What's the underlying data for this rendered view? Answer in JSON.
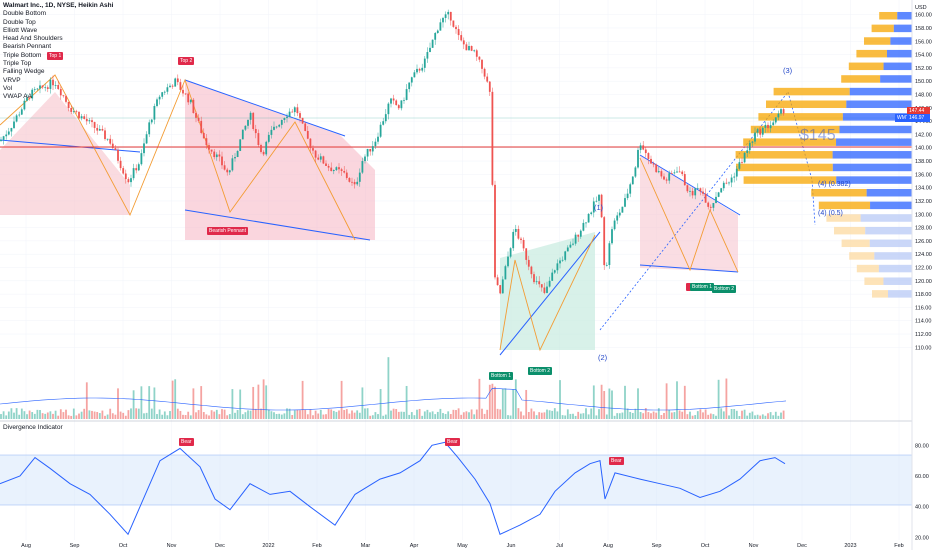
{
  "legend": {
    "title": "Walmart Inc., 1D, NYSE, Heikin Ashi",
    "items": [
      "Double Bottom",
      "Double Top",
      "Elliott Wave",
      "Head And Shoulders",
      "Bearish Pennant",
      "Triple Bottom",
      "Triple Top",
      "Falling Wedge",
      "VRVP",
      "Vol",
      "VWAP AA"
    ]
  },
  "oscillator_title": "Divergence Indicator",
  "patterns": {
    "top1": "Top 1",
    "top2": "Top 2",
    "bearish_pennant": "Bearish Pennant",
    "bottom1_a": "Bottom 1",
    "bottom2_a": "Bottom 2",
    "bottom1_b": "Bottom 1",
    "bottom2_b": "Bottom 2",
    "bear1": "Bear",
    "bear2": "Bear",
    "bear3": "Bear"
  },
  "waves": {
    "w1": "(1)",
    "w2": "(2)",
    "w3": "(3)",
    "w4a": "(4) (0.382)",
    "w4b": "(4) (0.5)",
    "target": "$145"
  },
  "price_tags": {
    "last": "147.44",
    "wmt": "WMT",
    "wmt_value": "146.97"
  },
  "colors": {
    "up": "#26a69a",
    "down": "#ef5350",
    "blue": "#2962ff",
    "orange": "#f7a600",
    "pattern_red": "#f5a6b4",
    "pattern_green": "#c8ebdf",
    "osc": "#2962ff"
  },
  "chart_data": {
    "type": "candlestick",
    "price_axis": {
      "label": "USD",
      "ticks": [
        160,
        158,
        156,
        154,
        152,
        150,
        148,
        146,
        144,
        142,
        140,
        138,
        136,
        134,
        132,
        130,
        128,
        126,
        124,
        122,
        120,
        118,
        116,
        114,
        112,
        110
      ],
      "ylim": [
        109,
        161
      ]
    },
    "oscillator_axis": {
      "ticks": [
        80,
        60,
        40,
        20
      ],
      "ylim": [
        15,
        90
      ],
      "band": [
        30,
        70
      ]
    },
    "time_axis": [
      "Aug",
      "Sep",
      "Oct",
      "Nov",
      "Dec",
      "2022",
      "Feb",
      "Mar",
      "Apr",
      "May",
      "Jun",
      "Jul",
      "Aug",
      "Sep",
      "Oct",
      "Nov",
      "Dec",
      "2023",
      "Feb"
    ],
    "key_levels": {
      "horizontal_red": 143.5,
      "last_close": 147.44,
      "wmt": 146.97
    },
    "price_path": [
      [
        0,
        141
      ],
      [
        10,
        143
      ],
      [
        30,
        148
      ],
      [
        55,
        150
      ],
      [
        70,
        146
      ],
      [
        95,
        143
      ],
      [
        110,
        141
      ],
      [
        128,
        135
      ],
      [
        140,
        138
      ],
      [
        150,
        144
      ],
      [
        160,
        148
      ],
      [
        175,
        150
      ],
      [
        190,
        147
      ],
      [
        205,
        141
      ],
      [
        220,
        138
      ],
      [
        228,
        136
      ],
      [
        240,
        141
      ],
      [
        250,
        145
      ],
      [
        262,
        139
      ],
      [
        270,
        142
      ],
      [
        285,
        145
      ],
      [
        296,
        146
      ],
      [
        305,
        142
      ],
      [
        315,
        139
      ],
      [
        330,
        137
      ],
      [
        345,
        136
      ],
      [
        355,
        134
      ],
      [
        362,
        138
      ],
      [
        375,
        141
      ],
      [
        390,
        147
      ],
      [
        400,
        146
      ],
      [
        410,
        150
      ],
      [
        425,
        153
      ],
      [
        440,
        159
      ],
      [
        450,
        160
      ],
      [
        460,
        156
      ],
      [
        475,
        154
      ],
      [
        485,
        151
      ],
      [
        490,
        148
      ],
      [
        495,
        120
      ],
      [
        500,
        118
      ],
      [
        510,
        125
      ],
      [
        515,
        128
      ],
      [
        525,
        124
      ],
      [
        535,
        120
      ],
      [
        545,
        118
      ],
      [
        555,
        122
      ],
      [
        570,
        125
      ],
      [
        585,
        129
      ],
      [
        600,
        133
      ],
      [
        605,
        121
      ],
      [
        612,
        128
      ],
      [
        625,
        132
      ],
      [
        635,
        137
      ],
      [
        640,
        141
      ],
      [
        650,
        138
      ],
      [
        665,
        135
      ],
      [
        678,
        137
      ],
      [
        690,
        133
      ],
      [
        700,
        134
      ],
      [
        710,
        131
      ],
      [
        720,
        134
      ],
      [
        730,
        135
      ],
      [
        745,
        139
      ],
      [
        755,
        142
      ],
      [
        765,
        143
      ],
      [
        775,
        144
      ],
      [
        785,
        146
      ]
    ],
    "volume_level": [
      0,
      1,
      0,
      2,
      1,
      3,
      0,
      1
    ],
    "oscillator": [
      [
        0,
        55
      ],
      [
        20,
        60
      ],
      [
        35,
        72
      ],
      [
        50,
        65
      ],
      [
        70,
        55
      ],
      [
        90,
        48
      ],
      [
        110,
        35
      ],
      [
        128,
        22
      ],
      [
        140,
        40
      ],
      [
        160,
        70
      ],
      [
        180,
        78
      ],
      [
        200,
        66
      ],
      [
        215,
        45
      ],
      [
        230,
        38
      ],
      [
        250,
        55
      ],
      [
        270,
        48
      ],
      [
        290,
        50
      ],
      [
        310,
        40
      ],
      [
        335,
        28
      ],
      [
        355,
        48
      ],
      [
        380,
        58
      ],
      [
        400,
        62
      ],
      [
        420,
        70
      ],
      [
        432,
        80
      ],
      [
        445,
        82
      ],
      [
        458,
        72
      ],
      [
        475,
        58
      ],
      [
        490,
        42
      ],
      [
        500,
        22
      ],
      [
        520,
        28
      ],
      [
        540,
        35
      ],
      [
        555,
        50
      ],
      [
        575,
        62
      ],
      [
        590,
        68
      ],
      [
        600,
        70
      ],
      [
        605,
        45
      ],
      [
        615,
        62
      ],
      [
        640,
        58
      ],
      [
        660,
        55
      ],
      [
        680,
        52
      ],
      [
        700,
        46
      ],
      [
        720,
        50
      ],
      [
        740,
        58
      ],
      [
        760,
        70
      ],
      [
        775,
        72
      ],
      [
        785,
        68
      ]
    ]
  }
}
